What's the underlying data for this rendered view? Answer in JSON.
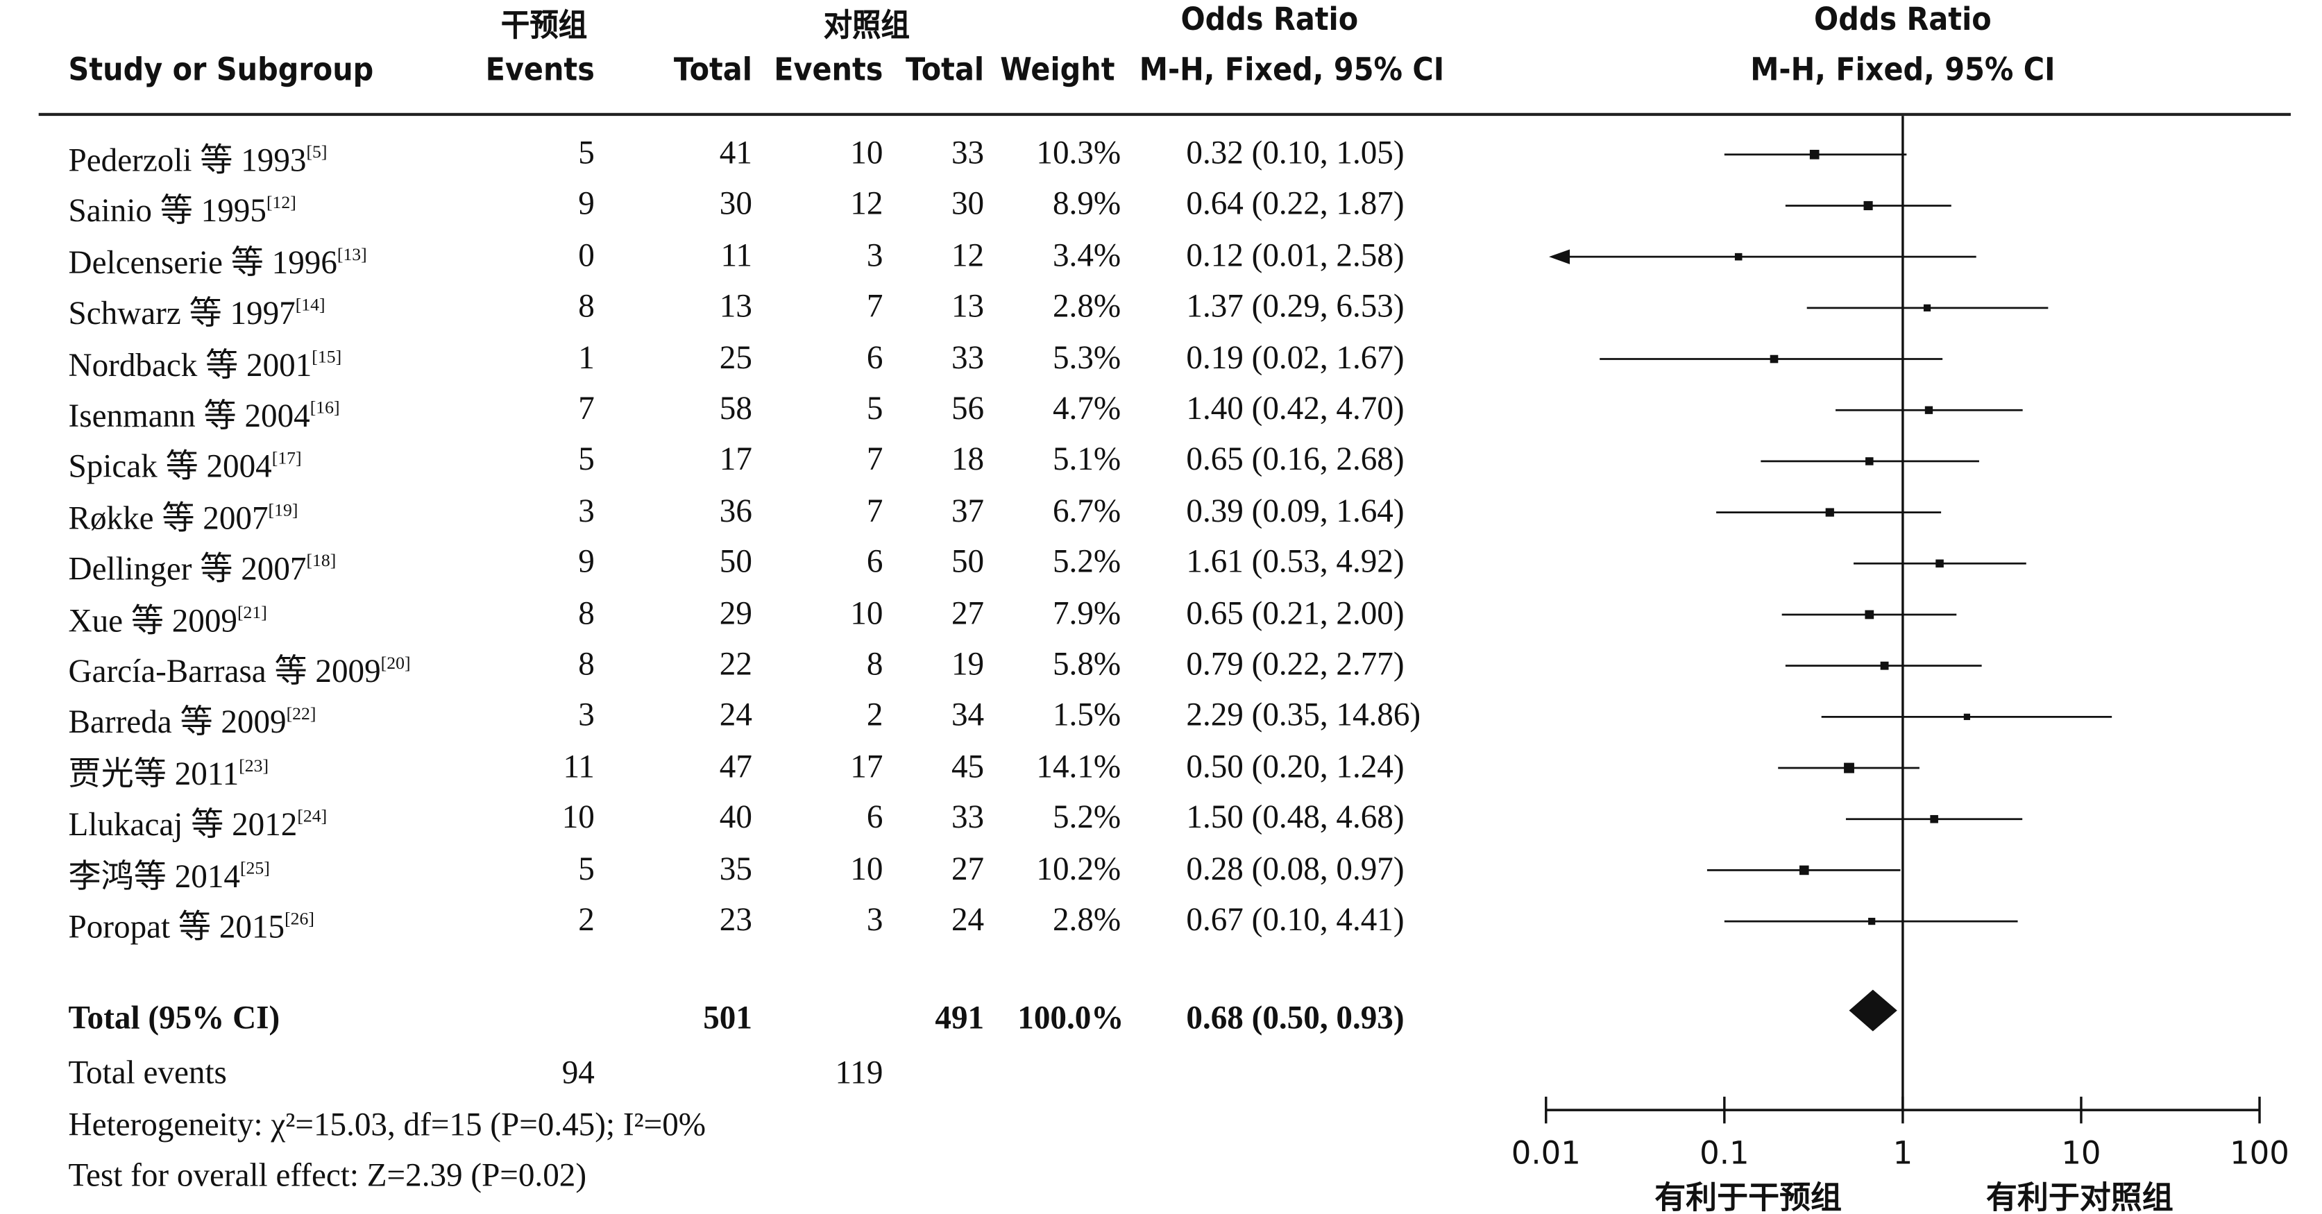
{
  "header": {
    "group_intervention": "干预组",
    "group_control": "对照组",
    "study_col": "Study or Subgroup",
    "events": "Events",
    "total": "Total",
    "weight": "Weight",
    "or_title": "Odds Ratio",
    "or_method": "M-H, Fixed, 95% CI",
    "plot_title": "Odds Ratio",
    "plot_method": "M-H, Fixed, 95% CI"
  },
  "summary": {
    "total_label": "Total (95% CI)",
    "total_events_label": "Total events",
    "heterogeneity": "Heterogeneity: χ²=15.03, df=15 (P=0.45); I²=0%",
    "overall_effect": "Test for overall effect: Z=2.39 (P=0.02)"
  },
  "axis": {
    "favours_left": "有利于干预组",
    "favours_right": "有利于对照组"
  },
  "colors": {
    "ink": "#111111"
  },
  "chart_data": {
    "type": "forest",
    "scale": "log",
    "xlim": [
      0.01,
      100
    ],
    "ticks": [
      0.01,
      0.1,
      1,
      10,
      100
    ],
    "tick_labels": [
      "0.01",
      "0.1",
      "1",
      "10",
      "100"
    ],
    "studies": [
      {
        "name": "Pederzoli 等 1993",
        "ref": "[5]",
        "e1": "5",
        "n1": "41",
        "e2": "10",
        "n2": "33",
        "weight": "10.3%",
        "ci_text": "0.32 (0.10, 1.05)",
        "or": 0.32,
        "lo": 0.1,
        "hi": 1.05,
        "w": 10.3
      },
      {
        "name": "Sainio 等 1995",
        "ref": "[12]",
        "e1": "9",
        "n1": "30",
        "e2": "12",
        "n2": "30",
        "weight": "8.9%",
        "ci_text": "0.64 (0.22, 1.87)",
        "or": 0.64,
        "lo": 0.22,
        "hi": 1.87,
        "w": 8.9
      },
      {
        "name": "Delcenserie 等 1996",
        "ref": "[13]",
        "e1": "0",
        "n1": "11",
        "e2": "3",
        "n2": "12",
        "weight": "3.4%",
        "ci_text": "0.12 (0.01, 2.58)",
        "or": 0.12,
        "lo": 0.01,
        "hi": 2.58,
        "w": 3.4
      },
      {
        "name": "Schwarz 等 1997",
        "ref": "[14]",
        "e1": "8",
        "n1": "13",
        "e2": "7",
        "n2": "13",
        "weight": "2.8%",
        "ci_text": "1.37 (0.29, 6.53)",
        "or": 1.37,
        "lo": 0.29,
        "hi": 6.53,
        "w": 2.8
      },
      {
        "name": "Nordback 等 2001",
        "ref": "[15]",
        "e1": "1",
        "n1": "25",
        "e2": "6",
        "n2": "33",
        "weight": "5.3%",
        "ci_text": "0.19 (0.02, 1.67)",
        "or": 0.19,
        "lo": 0.02,
        "hi": 1.67,
        "w": 5.3
      },
      {
        "name": "Isenmann 等 2004",
        "ref": "[16]",
        "e1": "7",
        "n1": "58",
        "e2": "5",
        "n2": "56",
        "weight": "4.7%",
        "ci_text": "1.40 (0.42, 4.70)",
        "or": 1.4,
        "lo": 0.42,
        "hi": 4.7,
        "w": 4.7
      },
      {
        "name": "Spicak 等 2004",
        "ref": "[17]",
        "e1": "5",
        "n1": "17",
        "e2": "7",
        "n2": "18",
        "weight": "5.1%",
        "ci_text": "0.65 (0.16, 2.68)",
        "or": 0.65,
        "lo": 0.16,
        "hi": 2.68,
        "w": 5.1
      },
      {
        "name": "Røkke 等 2007",
        "ref": "[19]",
        "e1": "3",
        "n1": "36",
        "e2": "7",
        "n2": "37",
        "weight": "6.7%",
        "ci_text": "0.39 (0.09, 1.64)",
        "or": 0.39,
        "lo": 0.09,
        "hi": 1.64,
        "w": 6.7
      },
      {
        "name": "Dellinger 等 2007",
        "ref": "[18]",
        "e1": "9",
        "n1": "50",
        "e2": "6",
        "n2": "50",
        "weight": "5.2%",
        "ci_text": "1.61 (0.53, 4.92)",
        "or": 1.61,
        "lo": 0.53,
        "hi": 4.92,
        "w": 5.2
      },
      {
        "name": "Xue 等 2009",
        "ref": "[21]",
        "e1": "8",
        "n1": "29",
        "e2": "10",
        "n2": "27",
        "weight": "7.9%",
        "ci_text": "0.65 (0.21, 2.00)",
        "or": 0.65,
        "lo": 0.21,
        "hi": 2.0,
        "w": 7.9
      },
      {
        "name": "García-Barrasa 等 2009",
        "ref": "[20]",
        "e1": "8",
        "n1": "22",
        "e2": "8",
        "n2": "19",
        "weight": "5.8%",
        "ci_text": "0.79 (0.22, 2.77)",
        "or": 0.79,
        "lo": 0.22,
        "hi": 2.77,
        "w": 5.8
      },
      {
        "name": "Barreda 等 2009",
        "ref": "[22]",
        "e1": "3",
        "n1": "24",
        "e2": "2",
        "n2": "34",
        "weight": "1.5%",
        "ci_text": "2.29 (0.35, 14.86)",
        "or": 2.29,
        "lo": 0.35,
        "hi": 14.86,
        "w": 1.5
      },
      {
        "name": "贾光等 2011",
        "ref": "[23]",
        "e1": "11",
        "n1": "47",
        "e2": "17",
        "n2": "45",
        "weight": "14.1%",
        "ci_text": "0.50 (0.20, 1.24)",
        "or": 0.5,
        "lo": 0.2,
        "hi": 1.24,
        "w": 14.1
      },
      {
        "name": "Llukacaj 等 2012",
        "ref": "[24]",
        "e1": "10",
        "n1": "40",
        "e2": "6",
        "n2": "33",
        "weight": "5.2%",
        "ci_text": "1.50 (0.48, 4.68)",
        "or": 1.5,
        "lo": 0.48,
        "hi": 4.68,
        "w": 5.2
      },
      {
        "name": "李鸿等 2014",
        "ref": "[25]",
        "e1": "5",
        "n1": "35",
        "e2": "10",
        "n2": "27",
        "weight": "10.2%",
        "ci_text": "0.28 (0.08, 0.97)",
        "or": 0.28,
        "lo": 0.08,
        "hi": 0.97,
        "w": 10.2
      },
      {
        "name": "Poropat 等 2015",
        "ref": "[26]",
        "e1": "2",
        "n1": "23",
        "e2": "3",
        "n2": "24",
        "weight": "2.8%",
        "ci_text": "0.67 (0.10, 4.41)",
        "or": 0.67,
        "lo": 0.1,
        "hi": 4.41,
        "w": 2.8
      }
    ],
    "total": {
      "n1": "501",
      "n2": "491",
      "weight": "100.0%",
      "ci_text": "0.68 (0.50, 0.93)",
      "or": 0.68,
      "lo": 0.5,
      "hi": 0.93,
      "events1": "94",
      "events2": "119"
    }
  }
}
